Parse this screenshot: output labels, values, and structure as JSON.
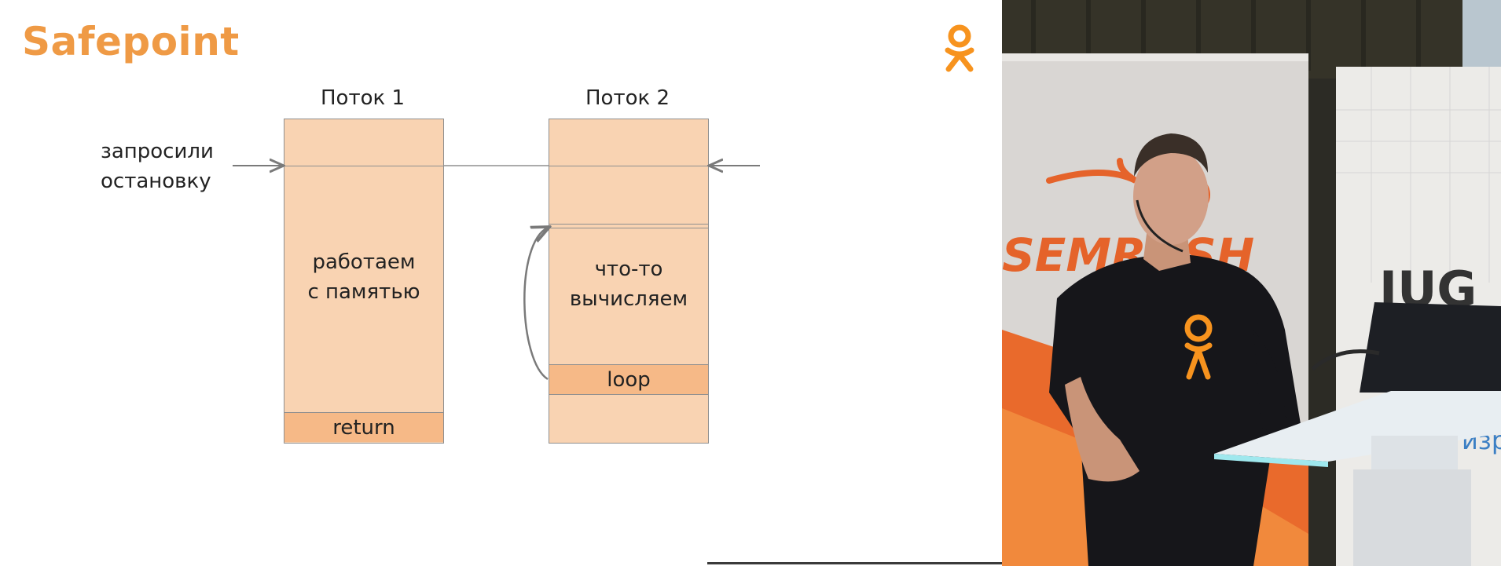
{
  "slide": {
    "title": "Safepoint",
    "left_label_line1": "запросили",
    "left_label_line2": "остановку"
  },
  "thread1": {
    "label": "Поток 1",
    "work_line1": "работаем",
    "work_line2": "с памятью",
    "return_label": "return"
  },
  "thread2": {
    "label": "Поток 2",
    "work_line1": "что-то",
    "work_line2": "вычисляем",
    "loop_label": "loop"
  },
  "video": {
    "banner_text": "SEMRUSH",
    "right_banner_text": "JUG",
    "right_banner_sub": "изра"
  },
  "colors": {
    "accent": "#ef9a45",
    "block_fill": "#f9d3b2",
    "block_accent": "#f6b987",
    "logo": "#f7931e"
  }
}
